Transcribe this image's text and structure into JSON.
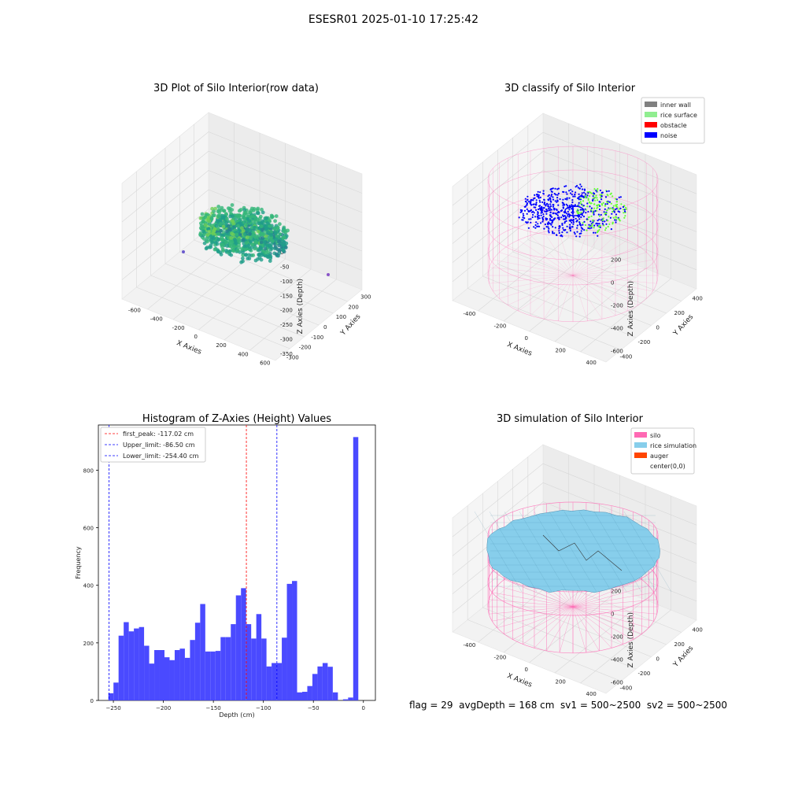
{
  "figure_title": "ESESR01 2025-01-10 17:25:42",
  "status_line": "flag = 29  avgDepth = 168 cm  sv1 = 500~2500  sv2 = 500~2500",
  "colors": {
    "pink": "#ff69b4",
    "skyblue": "#87ceeb",
    "blue": "#0000ff",
    "red": "#ff0000",
    "green": "#66ff33",
    "grey": "#808080",
    "lightgreen": "#90ee90",
    "orange": "#ff4500",
    "hist": "#4a4aff"
  },
  "chart_data": [
    {
      "type": "scatter",
      "projection": "3d",
      "title": "3D Plot of Silo Interior(row data)",
      "xlabel": "X Axies",
      "ylabel": "Y Axies",
      "zlabel": "Z Axies (Depth)",
      "xticks": [
        "-600",
        "-400",
        "-200",
        "0",
        "200",
        "400",
        "600"
      ],
      "yticks": [
        "-300",
        "-200",
        "-100",
        "0",
        "100",
        "200",
        "300"
      ],
      "zticks": [
        "0",
        "-50",
        "-100",
        "-150",
        "-200",
        "-250",
        "-300",
        "-350"
      ],
      "xlim": [
        -700,
        700
      ],
      "ylim": [
        -350,
        350
      ],
      "zlim": [
        -370,
        10
      ],
      "colormap": "viridis",
      "point_cloud": "dense point cloud, depth roughly -300 to -110"
    },
    {
      "type": "scatter",
      "projection": "3d",
      "title": "3D classify of Silo Interior",
      "xlabel": "X Axies",
      "ylabel": "Y Axies",
      "zlabel": "Z Axies (Depth)",
      "xticks": [
        "-400",
        "-200",
        "0",
        "200",
        "400"
      ],
      "yticks": [
        "-400",
        "-200",
        "0",
        "200",
        "400"
      ],
      "zticks": [
        "200",
        "0",
        "-200",
        "-400",
        "-600"
      ],
      "legend": [
        {
          "label": "inner wall",
          "color": "#808080"
        },
        {
          "label": "rice surface",
          "color": "#90ee90"
        },
        {
          "label": "obstacle",
          "color": "#ff0000"
        },
        {
          "label": "noise",
          "color": "#0000ff"
        }
      ],
      "legend_position": "top-right"
    },
    {
      "type": "bar",
      "title": "Histogram of Z-Axies (Height) Values",
      "xlabel": "Depth (cm)",
      "ylabel": "Frequency",
      "xticks": [
        -250,
        -200,
        -150,
        -100,
        -50,
        0
      ],
      "yticks": [
        0,
        200,
        400,
        600,
        800
      ],
      "xlim": [
        -265,
        12
      ],
      "ylim": [
        0,
        957
      ],
      "bin_start": -255,
      "bin_width": 5.1,
      "values": [
        25,
        62,
        225,
        272,
        240,
        250,
        255,
        190,
        128,
        175,
        175,
        150,
        140,
        175,
        180,
        148,
        210,
        270,
        335,
        170,
        170,
        172,
        220,
        220,
        265,
        365,
        390,
        265,
        215,
        300,
        215,
        118,
        130,
        130,
        218,
        405,
        415,
        28,
        30,
        50,
        92,
        118,
        130,
        117,
        28,
        0,
        4,
        10,
        915
      ],
      "vlines": [
        {
          "label": "first_peak: -117.02 cm",
          "value": -117.02,
          "color": "#ff0000"
        },
        {
          "label": "Upper_limit: -86.50 cm",
          "value": -86.5,
          "color": "#0000ff"
        },
        {
          "label": "Lower_limit: -254.40 cm",
          "value": -254.4,
          "color": "#0000ff"
        }
      ],
      "legend_position": "top-left"
    },
    {
      "type": "area",
      "projection": "3d",
      "title": "3D simulation of Silo Interior",
      "xlabel": "X Axies",
      "ylabel": "Y Axies",
      "zlabel": "Z Axies (Depth)",
      "xticks": [
        "-400",
        "-200",
        "0",
        "200",
        "400"
      ],
      "yticks": [
        "-400",
        "-200",
        "0",
        "200",
        "400"
      ],
      "zticks": [
        "200",
        "0",
        "-200",
        "-400",
        "-600"
      ],
      "legend": [
        {
          "label": "silo",
          "color": "#ff69b4"
        },
        {
          "label": "rice simulation",
          "color": "#87ceeb"
        },
        {
          "label": "auger",
          "color": "#ff4500"
        },
        {
          "label": "center(0,0)",
          "color": "#ffffff"
        }
      ],
      "legend_position": "top-right"
    }
  ]
}
